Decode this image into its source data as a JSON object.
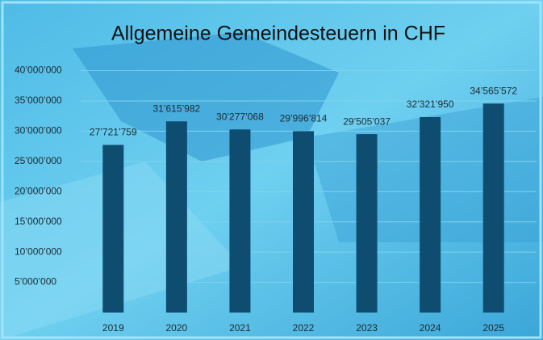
{
  "chart_data": {
    "type": "bar",
    "title": "Allgemeine Gemeindesteuern in CHF",
    "categories": [
      "2019",
      "2020",
      "2021",
      "2022",
      "2023",
      "2024",
      "2025"
    ],
    "values": [
      27721759,
      31615982,
      30277068,
      29996814,
      29505037,
      32321950,
      34565572
    ],
    "value_labels": [
      "27’721’759",
      "31’615’982",
      "30’277’068",
      "29’996’814",
      "29’505’037",
      "32’321’950",
      "34’565’572"
    ],
    "color": "#0e4d70",
    "ylim": [
      0,
      40000000
    ],
    "yticks": [
      {
        "value": 5000000,
        "label": "5’000’000"
      },
      {
        "value": 10000000,
        "label": "10’000’000"
      },
      {
        "value": 15000000,
        "label": "15’000’000"
      },
      {
        "value": 20000000,
        "label": "20’000’000"
      },
      {
        "value": 25000000,
        "label": "25’000’000"
      },
      {
        "value": 30000000,
        "label": "30’000’000"
      },
      {
        "value": 35000000,
        "label": "35’000’000"
      },
      {
        "value": 40000000,
        "label": "40’000’000"
      }
    ],
    "grid": true
  }
}
